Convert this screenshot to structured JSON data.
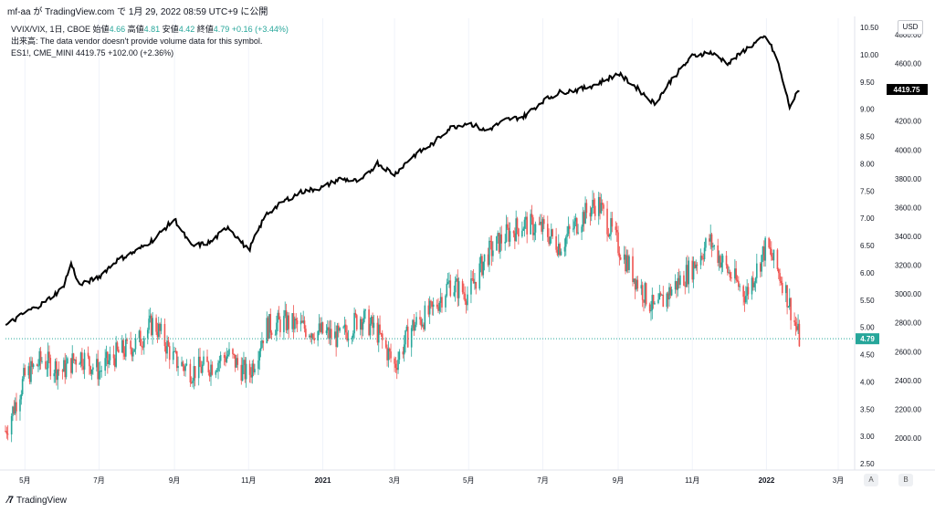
{
  "header": {
    "text": "mf-aa が TradingView.com で 1月 29, 2022 08:59 UTC+9 に公開"
  },
  "legend": {
    "symbol": "VVIX/VIX, 1日, CBOE",
    "open_label": "始値",
    "open_value": "4.66",
    "high_label": "高値",
    "high_value": "4.81",
    "low_label": "安値",
    "low_value": "4.42",
    "close_label": "終値",
    "close_value": "4.79",
    "change": "+0.16 (+3.44%)",
    "volume_note": "出来高: The data vendor doesn't provide volume data for this symbol.",
    "overlay_symbol": "ES1!, CME_MINI",
    "overlay_value": "4419.75",
    "overlay_change": "+102.00 (+2.36%)"
  },
  "currency_label": "USD",
  "scale_buttons": {
    "a": "A",
    "b": "B"
  },
  "footer": {
    "brand": "TradingView"
  },
  "colors": {
    "up": "#26a69a",
    "down": "#ef5350",
    "line": "#000000",
    "grid": "#f0f3fa"
  },
  "chart_data": {
    "type": "candlestick",
    "x_ticks": [
      "5月",
      "7月",
      "9月",
      "11月",
      "2021",
      "3月",
      "5月",
      "7月",
      "9月",
      "11月",
      "2022",
      "3月"
    ],
    "y_left": {
      "label": "VVIX/VIX",
      "ticks": [
        "10.50",
        "10.00",
        "9.50",
        "9.00",
        "8.50",
        "8.00",
        "7.50",
        "7.00",
        "6.50",
        "6.00",
        "5.50",
        "5.00",
        "4.50",
        "4.00",
        "3.50",
        "3.00",
        "2.50"
      ],
      "range": [
        2.5,
        10.5
      ]
    },
    "y_right": {
      "label": "ES1!",
      "ticks": [
        "4800.00",
        "4600.00",
        "4400.00",
        "4200.00",
        "4000.00",
        "3800.00",
        "3600.00",
        "3400.00",
        "3200.00",
        "3000.00",
        "2800.00",
        "2600.00",
        "2400.00",
        "2200.00",
        "2000.00"
      ],
      "range": [
        1900,
        4830
      ]
    },
    "last_price_vvix": "4.79",
    "last_price_es": "4419.75",
    "vvix_vix_series": {
      "name": "VVIX/VIX",
      "x": [
        "2020-04-15",
        "2020-05-01",
        "2020-05-15",
        "2020-06-01",
        "2020-06-15",
        "2020-07-01",
        "2020-07-15",
        "2020-08-01",
        "2020-08-15",
        "2020-09-01",
        "2020-09-15",
        "2020-10-01",
        "2020-10-15",
        "2020-11-01",
        "2020-11-15",
        "2020-12-01",
        "2020-12-15",
        "2021-01-01",
        "2021-01-15",
        "2021-02-01",
        "2021-02-15",
        "2021-03-01",
        "2021-03-15",
        "2021-04-01",
        "2021-04-15",
        "2021-05-01",
        "2021-05-15",
        "2021-06-01",
        "2021-06-15",
        "2021-07-01",
        "2021-07-15",
        "2021-08-01",
        "2021-08-15",
        "2021-09-01",
        "2021-09-15",
        "2021-10-01",
        "2021-10-15",
        "2021-11-01",
        "2021-11-15",
        "2021-12-01",
        "2021-12-15",
        "2022-01-01",
        "2022-01-15",
        "2022-01-28"
      ],
      "values": [
        3.1,
        4.1,
        4.4,
        4.2,
        4.5,
        4.2,
        4.5,
        4.7,
        5.1,
        4.4,
        4.2,
        4.3,
        4.5,
        4.1,
        5.0,
        5.1,
        5.0,
        4.9,
        4.8,
        5.2,
        4.9,
        4.3,
        5.0,
        5.3,
        5.8,
        5.6,
        6.3,
        6.7,
        6.9,
        6.8,
        6.5,
        7.0,
        7.3,
        6.5,
        5.9,
        5.3,
        5.7,
        6.1,
        6.6,
        6.0,
        5.6,
        6.5,
        5.8,
        4.79
      ]
    },
    "es_series": {
      "name": "ES1!",
      "x": [
        "2020-04-15",
        "2020-05-01",
        "2020-05-15",
        "2020-06-01",
        "2020-06-08",
        "2020-06-15",
        "2020-07-01",
        "2020-07-15",
        "2020-08-01",
        "2020-08-15",
        "2020-09-01",
        "2020-09-15",
        "2020-10-01",
        "2020-10-15",
        "2020-11-01",
        "2020-11-15",
        "2020-12-01",
        "2020-12-15",
        "2021-01-01",
        "2021-01-15",
        "2021-02-01",
        "2021-02-15",
        "2021-03-01",
        "2021-03-15",
        "2021-04-01",
        "2021-04-15",
        "2021-05-01",
        "2021-05-15",
        "2021-06-01",
        "2021-06-15",
        "2021-07-01",
        "2021-07-15",
        "2021-08-01",
        "2021-08-15",
        "2021-09-01",
        "2021-09-15",
        "2021-10-01",
        "2021-10-15",
        "2021-11-01",
        "2021-11-15",
        "2021-12-01",
        "2021-12-15",
        "2022-01-01",
        "2022-01-10",
        "2022-01-20",
        "2022-01-28"
      ],
      "values": [
        2780,
        2870,
        2930,
        3040,
        3210,
        3060,
        3120,
        3230,
        3300,
        3380,
        3520,
        3330,
        3360,
        3470,
        3300,
        3550,
        3650,
        3710,
        3740,
        3800,
        3780,
        3910,
        3830,
        3950,
        4040,
        4150,
        4190,
        4130,
        4210,
        4230,
        4340,
        4400,
        4420,
        4460,
        4530,
        4440,
        4320,
        4490,
        4650,
        4680,
        4600,
        4700,
        4790,
        4620,
        4300,
        4419.75
      ]
    }
  }
}
